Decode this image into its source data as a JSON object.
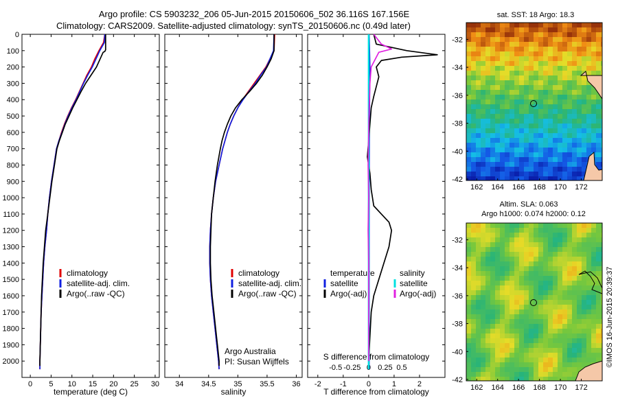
{
  "header": {
    "line1": "Argo profile: CS 5903232_206 05-Jun-2015 20150606_502 36.116S 167.156E",
    "line2": "Climatology: CARS2009. Satellite-adjusted climatology: synTS_20150606.nc (0.49d later)"
  },
  "colors": {
    "climatology": "#e00000",
    "satellite": "#1020e0",
    "argo": "#000000",
    "s_satellite": "#00e0e0",
    "s_argo": "#e020e0"
  },
  "footer": {
    "credit1": "Argo Australia",
    "credit2": "PI: Susan Wijffels",
    "watermark": "©IMOS 16-Jun-2015 20:39:37"
  },
  "legends": {
    "temp": [
      "climatology",
      "satellite-adj. clim.",
      "Argo(..raw -QC)"
    ],
    "sal": [
      "climatology",
      "satellite-adj. clim.",
      "Argo(..raw -QC)"
    ],
    "diff_temp_title": "temperature",
    "diff_sal_title": "salinity",
    "diff_items": [
      "satellite",
      "Argo(-adj)"
    ]
  },
  "maps": {
    "sst_title": "sat. SST: 18 Argo: 18.3",
    "sla_title1": "Altim. SLA: 0.063",
    "sla_title2": "Argo h1000: 0.074 h2000: 0.12",
    "lon_ticks": [
      "162",
      "164",
      "166",
      "168",
      "170",
      "172"
    ],
    "sst_lat_ticks": [
      "-32",
      "-34",
      "-36",
      "-38",
      "-40",
      "-42"
    ],
    "sla_lat_ticks": [
      "-32",
      "-34",
      "-36",
      "-38",
      "-40",
      "-42"
    ],
    "argo_position": {
      "lon": 167.156,
      "lat": -36.116
    }
  },
  "chart_data": [
    {
      "type": "line",
      "xlabel": "temperature (deg C)",
      "xlim": [
        -2,
        31
      ],
      "ylim": [
        2100,
        0
      ],
      "x_ticks": [
        "0",
        "5",
        "10",
        "15",
        "20",
        "25",
        "30"
      ],
      "y_ticks": [
        "0",
        "100",
        "200",
        "300",
        "400",
        "500",
        "600",
        "700",
        "800",
        "900",
        "1000",
        "1100",
        "1200",
        "1300",
        "1400",
        "1500",
        "1600",
        "1700",
        "1800",
        "1900",
        "2000"
      ],
      "series": [
        {
          "name": "climatology",
          "color": "#e00000",
          "points": [
            [
              17.9,
              0
            ],
            [
              17.6,
              50
            ],
            [
              16.5,
              100
            ],
            [
              15.5,
              150
            ],
            [
              14.7,
              200
            ],
            [
              13.6,
              250
            ],
            [
              12.7,
              300
            ],
            [
              11.8,
              350
            ],
            [
              10.9,
              400
            ],
            [
              9.9,
              450
            ],
            [
              9.0,
              500
            ],
            [
              8.2,
              550
            ],
            [
              7.5,
              600
            ],
            [
              6.9,
              650
            ],
            [
              6.3,
              700
            ],
            [
              5.7,
              800
            ],
            [
              5.1,
              900
            ],
            [
              4.6,
              1000
            ],
            [
              4.2,
              1100
            ],
            [
              3.9,
              1200
            ],
            [
              3.5,
              1300
            ],
            [
              3.2,
              1400
            ],
            [
              3.0,
              1500
            ],
            [
              2.8,
              1600
            ],
            [
              2.6,
              1700
            ],
            [
              2.5,
              1800
            ],
            [
              2.4,
              1900
            ],
            [
              2.3,
              2000
            ],
            [
              2.3,
              2050
            ]
          ]
        },
        {
          "name": "satellite-adj. clim.",
          "color": "#1020e0",
          "points": [
            [
              17.9,
              0
            ],
            [
              17.8,
              50
            ],
            [
              16.7,
              100
            ],
            [
              15.8,
              150
            ],
            [
              14.9,
              200
            ],
            [
              13.8,
              250
            ],
            [
              12.8,
              300
            ],
            [
              11.9,
              350
            ],
            [
              11.0,
              400
            ],
            [
              10.0,
              450
            ],
            [
              9.1,
              500
            ],
            [
              8.3,
              550
            ],
            [
              7.6,
              600
            ],
            [
              6.9,
              650
            ],
            [
              6.3,
              700
            ],
            [
              5.7,
              800
            ],
            [
              5.1,
              900
            ],
            [
              4.6,
              1000
            ],
            [
              4.2,
              1100
            ],
            [
              3.9,
              1200
            ],
            [
              3.5,
              1300
            ],
            [
              3.2,
              1400
            ],
            [
              3.0,
              1500
            ],
            [
              2.8,
              1600
            ],
            [
              2.6,
              1700
            ],
            [
              2.5,
              1800
            ],
            [
              2.4,
              1900
            ],
            [
              2.3,
              2000
            ],
            [
              2.3,
              2050
            ]
          ]
        },
        {
          "name": "Argo(..raw -QC)",
          "color": "#000000",
          "points": [
            [
              18.1,
              0
            ],
            [
              18.1,
              95
            ],
            [
              17.9,
              105
            ],
            [
              17.5,
              110
            ],
            [
              16.8,
              150
            ],
            [
              15.9,
              200
            ],
            [
              14.6,
              250
            ],
            [
              13.3,
              300
            ],
            [
              12.2,
              350
            ],
            [
              11.2,
              400
            ],
            [
              10.2,
              450
            ],
            [
              9.3,
              500
            ],
            [
              8.4,
              550
            ],
            [
              7.7,
              600
            ],
            [
              7.0,
              650
            ],
            [
              6.4,
              700
            ],
            [
              5.8,
              800
            ],
            [
              5.2,
              900
            ],
            [
              4.7,
              1000
            ],
            [
              4.2,
              1100
            ],
            [
              3.7,
              1200
            ],
            [
              3.4,
              1300
            ],
            [
              3.1,
              1400
            ],
            [
              2.9,
              1500
            ],
            [
              2.7,
              1600
            ],
            [
              2.6,
              1700
            ],
            [
              2.5,
              1800
            ],
            [
              2.4,
              1900
            ],
            [
              2.3,
              2000
            ],
            [
              2.3,
              2030
            ]
          ]
        }
      ]
    },
    {
      "type": "line",
      "xlabel": "salinity",
      "xlim": [
        33.75,
        36.1
      ],
      "ylim": [
        2100,
        0
      ],
      "x_ticks": [
        "34",
        "34.5",
        "35",
        "35.5",
        "36"
      ],
      "series": [
        {
          "name": "climatology",
          "color": "#e00000",
          "points": [
            [
              35.63,
              0
            ],
            [
              35.62,
              100
            ],
            [
              35.55,
              150
            ],
            [
              35.48,
              200
            ],
            [
              35.38,
              250
            ],
            [
              35.28,
              300
            ],
            [
              35.18,
              350
            ],
            [
              35.08,
              400
            ],
            [
              35.0,
              450
            ],
            [
              34.93,
              500
            ],
            [
              34.87,
              550
            ],
            [
              34.82,
              600
            ],
            [
              34.78,
              650
            ],
            [
              34.74,
              700
            ],
            [
              34.68,
              800
            ],
            [
              34.62,
              900
            ],
            [
              34.58,
              1000
            ],
            [
              34.55,
              1100
            ],
            [
              34.53,
              1200
            ],
            [
              34.52,
              1300
            ],
            [
              34.52,
              1400
            ],
            [
              34.53,
              1500
            ],
            [
              34.55,
              1600
            ],
            [
              34.58,
              1700
            ],
            [
              34.61,
              1800
            ],
            [
              34.64,
              1900
            ],
            [
              34.67,
              2000
            ],
            [
              34.68,
              2050
            ]
          ]
        },
        {
          "name": "satellite-adj. clim.",
          "color": "#1020e0",
          "points": [
            [
              35.62,
              0
            ],
            [
              35.61,
              100
            ],
            [
              35.55,
              150
            ],
            [
              35.49,
              200
            ],
            [
              35.39,
              250
            ],
            [
              35.3,
              300
            ],
            [
              35.19,
              350
            ],
            [
              35.09,
              400
            ],
            [
              35.0,
              450
            ],
            [
              34.93,
              500
            ],
            [
              34.87,
              550
            ],
            [
              34.82,
              600
            ],
            [
              34.78,
              650
            ],
            [
              34.74,
              700
            ],
            [
              34.68,
              800
            ],
            [
              34.62,
              900
            ],
            [
              34.58,
              1000
            ],
            [
              34.55,
              1100
            ],
            [
              34.53,
              1200
            ],
            [
              34.52,
              1300
            ],
            [
              34.52,
              1400
            ],
            [
              34.53,
              1500
            ],
            [
              34.55,
              1600
            ],
            [
              34.58,
              1700
            ],
            [
              34.61,
              1800
            ],
            [
              34.64,
              1900
            ],
            [
              34.67,
              2000
            ],
            [
              34.68,
              2050
            ]
          ]
        },
        {
          "name": "Argo(..raw -QC)",
          "color": "#000000",
          "points": [
            [
              35.62,
              0
            ],
            [
              35.62,
              100
            ],
            [
              35.57,
              150
            ],
            [
              35.5,
              200
            ],
            [
              35.42,
              250
            ],
            [
              35.32,
              300
            ],
            [
              35.2,
              350
            ],
            [
              35.07,
              400
            ],
            [
              34.96,
              450
            ],
            [
              34.88,
              500
            ],
            [
              34.82,
              550
            ],
            [
              34.77,
              600
            ],
            [
              34.73,
              650
            ],
            [
              34.7,
              700
            ],
            [
              34.65,
              800
            ],
            [
              34.61,
              900
            ],
            [
              34.58,
              1000
            ],
            [
              34.55,
              1100
            ],
            [
              34.54,
              1200
            ],
            [
              34.53,
              1300
            ],
            [
              34.53,
              1400
            ],
            [
              34.54,
              1500
            ],
            [
              34.56,
              1600
            ],
            [
              34.59,
              1700
            ],
            [
              34.62,
              1800
            ],
            [
              34.65,
              1900
            ],
            [
              34.68,
              2000
            ],
            [
              34.68,
              2030
            ]
          ]
        }
      ]
    },
    {
      "type": "line",
      "xlabel": "T difference from climatology",
      "xlabel_top": "S difference from climatology",
      "xlim": [
        -2.4,
        3.0
      ],
      "ylim": [
        2100,
        0
      ],
      "x_ticks": [
        "-2",
        "-1",
        "0",
        "1",
        "2"
      ],
      "x_ticks_s": [
        "-0.5",
        "-0.25",
        "0",
        "0.25",
        "0.5"
      ],
      "series": [
        {
          "name": "temperature satellite",
          "color": "#1020e0",
          "points": [
            [
              0.02,
              0
            ],
            [
              0.05,
              200
            ],
            [
              0.03,
              500
            ],
            [
              0.02,
              1000
            ],
            [
              0.02,
              1500
            ],
            [
              0.02,
              2000
            ],
            [
              0.02,
              2050
            ]
          ]
        },
        {
          "name": "temperature Argo(-adj)",
          "color": "#000000",
          "points": [
            [
              0.2,
              0
            ],
            [
              0.3,
              60
            ],
            [
              1.5,
              100
            ],
            [
              2.7,
              125
            ],
            [
              1.3,
              140
            ],
            [
              0.5,
              160
            ],
            [
              0.3,
              200
            ],
            [
              0.4,
              260
            ],
            [
              0.3,
              320
            ],
            [
              0.2,
              380
            ],
            [
              0.1,
              450
            ],
            [
              0.05,
              550
            ],
            [
              0.0,
              650
            ],
            [
              -0.05,
              750
            ],
            [
              0.05,
              850
            ],
            [
              0.1,
              950
            ],
            [
              0.2,
              1050
            ],
            [
              0.5,
              1100
            ],
            [
              0.8,
              1150
            ],
            [
              0.9,
              1200
            ],
            [
              0.8,
              1300
            ],
            [
              0.6,
              1400
            ],
            [
              0.4,
              1500
            ],
            [
              0.2,
              1600
            ],
            [
              0.1,
              1700
            ],
            [
              0.05,
              1850
            ],
            [
              0.0,
              2000
            ],
            [
              0.0,
              2030
            ]
          ]
        },
        {
          "name": "salinity satellite",
          "color": "#00e0e0",
          "points": [
            [
              0.0,
              0
            ],
            [
              0.0,
              500
            ],
            [
              0.0,
              1000
            ],
            [
              0.0,
              1500
            ],
            [
              0.0,
              2050
            ]
          ]
        },
        {
          "name": "salinity Argo(-adj)",
          "color": "#e020e0",
          "points": [
            [
              0.2,
              0
            ],
            [
              0.5,
              60
            ],
            [
              0.9,
              90
            ],
            [
              0.4,
              110
            ],
            [
              0.1,
              200
            ],
            [
              0.05,
              300
            ],
            [
              0.02,
              450
            ],
            [
              0.0,
              600
            ],
            [
              -0.02,
              800
            ],
            [
              0.0,
              1000
            ],
            [
              -0.02,
              1200
            ],
            [
              0.0,
              1400
            ],
            [
              0.0,
              1600
            ],
            [
              0.0,
              1800
            ],
            [
              0.0,
              2000
            ]
          ]
        }
      ]
    }
  ]
}
